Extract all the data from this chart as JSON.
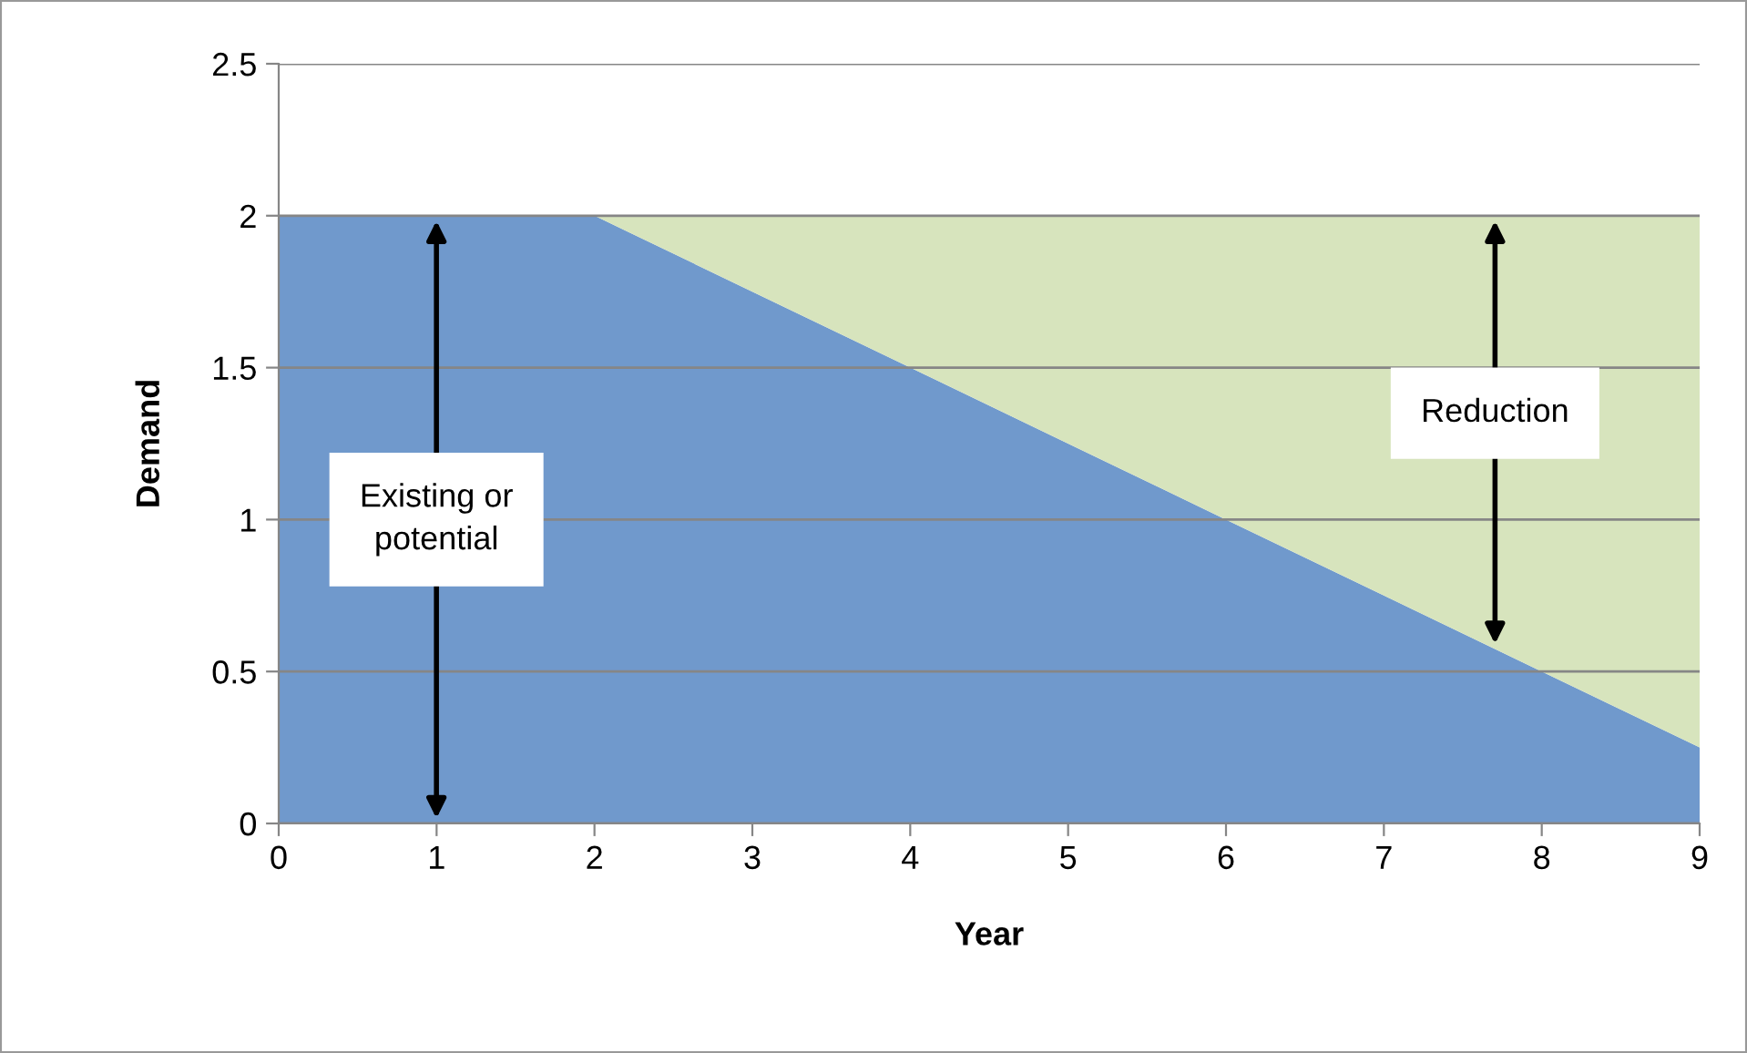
{
  "chart_data": {
    "type": "area",
    "stacked": true,
    "xlabel": "Year",
    "ylabel": "Demand",
    "x": [
      0,
      1,
      2,
      3,
      4,
      5,
      6,
      7,
      8,
      9
    ],
    "series": [
      {
        "color": "#7099cc",
        "values": [
          2,
          2,
          2,
          1.75,
          1.5,
          1.25,
          1,
          0.75,
          0.5,
          0.25
        ]
      },
      {
        "color": "#d7e4bd",
        "values": [
          0,
          0,
          0,
          0.25,
          0.5,
          0.75,
          1,
          1.25,
          1.5,
          1.75
        ]
      }
    ],
    "xlim": [
      0,
      9
    ],
    "xticks": [
      0,
      1,
      2,
      3,
      4,
      5,
      6,
      7,
      8,
      9
    ],
    "ylim": [
      0,
      2.5
    ],
    "yticks": [
      0,
      0.5,
      1,
      1.5,
      2,
      2.5
    ],
    "grid": "y",
    "legend": false,
    "annotations": [
      "Existing or\npotential",
      "Reduction"
    ]
  }
}
